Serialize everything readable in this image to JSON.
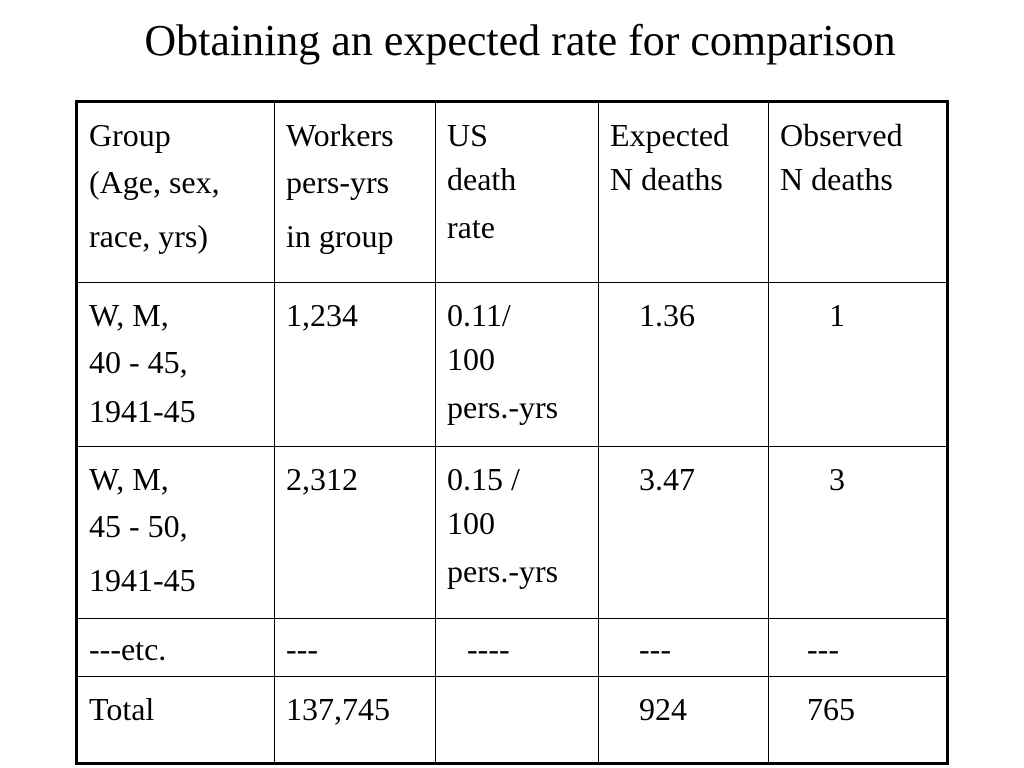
{
  "title": "Obtaining an expected rate for comparison",
  "table": {
    "headers": [
      [
        "Group",
        "(Age, sex,",
        "race, yrs)"
      ],
      [
        "Workers",
        "pers-yrs",
        "in group"
      ],
      [
        "US",
        "death",
        "rate"
      ],
      [
        "Expected",
        "N deaths"
      ],
      [
        "Observed",
        "N deaths"
      ]
    ],
    "rows": [
      {
        "group": [
          "W, M,",
          "40 - 45,",
          "1941-45"
        ],
        "workers": "1,234",
        "rate": [
          "0.11/",
          "100",
          "pers.-yrs"
        ],
        "expected": "1.36",
        "observed": "1"
      },
      {
        "group": [
          "W, M,",
          "45 - 50,",
          "1941-45"
        ],
        "workers": "2,312",
        "rate": [
          "0.15 /",
          "100",
          "pers.-yrs"
        ],
        "expected": "3.47",
        "observed": "3"
      },
      {
        "group": [
          "---etc."
        ],
        "workers": "---",
        "rate": [
          "----"
        ],
        "expected": "---",
        "observed": "---"
      },
      {
        "group": [
          "Total"
        ],
        "workers": "137,745",
        "rate": [
          ""
        ],
        "expected": "924",
        "observed": "765"
      }
    ]
  }
}
